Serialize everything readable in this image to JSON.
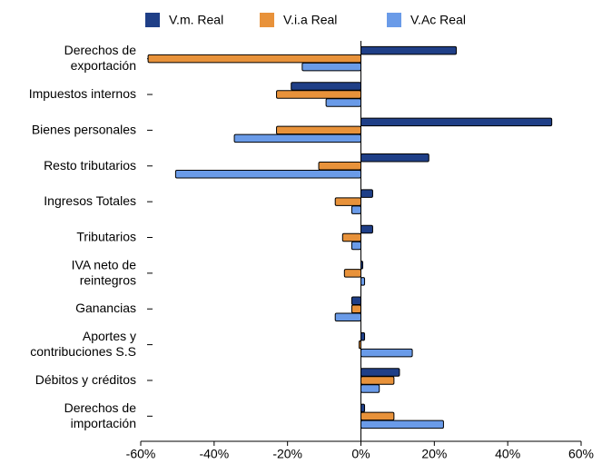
{
  "chart_data": {
    "type": "barh",
    "categories": [
      "Derechos de\nexportación",
      "Impuestos internos",
      "Bienes personales",
      "Resto tributarios",
      "Ingresos Totales",
      "Tributarios",
      "IVA neto de\nreintegros",
      "Ganancias",
      "Aportes y\ncontribuciones  S.S",
      "Débitos y créditos",
      "Derechos de\nimportación"
    ],
    "series": [
      {
        "name": "V.m. Real",
        "color": "#1f3f87",
        "values": [
          26,
          -19,
          52,
          18.5,
          3.2,
          3.2,
          0.5,
          -2.5,
          1,
          10.5,
          1
        ]
      },
      {
        "name": "V.i.a Real",
        "color": "#e8923a",
        "values": [
          -58,
          -23,
          -23,
          -11.5,
          -7,
          -5,
          -4.5,
          -2.5,
          -0.5,
          9,
          9
        ]
      },
      {
        "name": "V.Ac Real",
        "color": "#6a9be8",
        "values": [
          -16,
          -9.5,
          -34.5,
          -50.5,
          -2.5,
          -2.5,
          1,
          -7,
          14,
          5,
          22.5
        ]
      }
    ],
    "xlim": [
      -60,
      60
    ],
    "xticks": [
      {
        "value": -60,
        "label": "-60%"
      },
      {
        "value": -40,
        "label": "-40%"
      },
      {
        "value": -20,
        "label": "-20%"
      },
      {
        "value": 0,
        "label": "0%"
      },
      {
        "value": 20,
        "label": "20%"
      },
      {
        "value": 40,
        "label": "40%"
      },
      {
        "value": 60,
        "label": "60%"
      }
    ],
    "legend": "top"
  }
}
